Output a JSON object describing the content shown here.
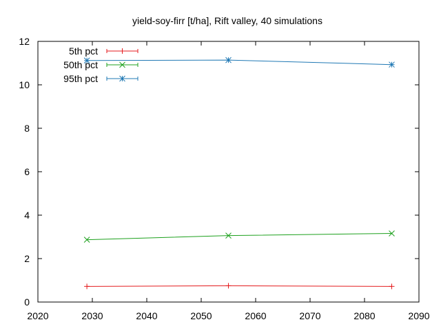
{
  "chart_data": {
    "type": "line",
    "title": "yield-soy-firr [t/ha], Rift valley, 40 simulations",
    "xlabel": "",
    "ylabel": "",
    "xlim": [
      2020,
      2090
    ],
    "ylim": [
      0,
      12
    ],
    "xticks": [
      2020,
      2030,
      2040,
      2050,
      2060,
      2070,
      2080,
      2090
    ],
    "yticks": [
      0,
      2,
      4,
      6,
      8,
      10,
      12
    ],
    "grid": false,
    "legend_position": "top-left",
    "x": [
      2029,
      2055,
      2085
    ],
    "series": [
      {
        "name": "5th pct",
        "color": "#e41a1c",
        "marker": "plus",
        "values": [
          0.72,
          0.75,
          0.72
        ]
      },
      {
        "name": "50th pct",
        "color": "#1ca01c",
        "marker": "cross",
        "values": [
          2.87,
          3.06,
          3.16
        ]
      },
      {
        "name": "95th pct",
        "color": "#1f78b4",
        "marker": "asterisk",
        "values": [
          11.12,
          11.14,
          10.93
        ]
      }
    ]
  }
}
